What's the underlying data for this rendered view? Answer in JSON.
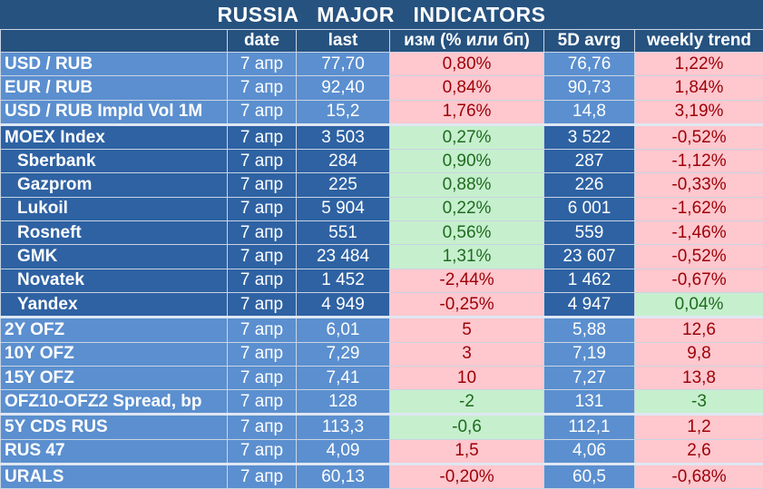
{
  "title": "RUSSIA   MAJOR   INDICATORS",
  "headers": [
    "",
    "date",
    "last",
    "изм (% или бп)",
    "5D avrg",
    "weekly trend"
  ],
  "rows": [
    {
      "name": "USD / RUB",
      "date": "7 апр",
      "last": "77,70",
      "chg": "0,80%",
      "avg": "76,76",
      "trend": "1,22%",
      "chg_s": "neg",
      "trend_s": "neg",
      "band": "blue-l",
      "sub": false,
      "sep": false
    },
    {
      "name": "EUR / RUB",
      "date": "7 апр",
      "last": "92,40",
      "chg": "0,84%",
      "avg": "90,73",
      "trend": "1,84%",
      "chg_s": "neg",
      "trend_s": "neg",
      "band": "blue-l",
      "sub": false,
      "sep": false
    },
    {
      "name": "USD / RUB Impld Vol 1M",
      "date": "7 апр",
      "last": "15,2",
      "chg": "1,76%",
      "avg": "14,8",
      "trend": "3,19%",
      "chg_s": "neg",
      "trend_s": "neg",
      "band": "blue-l",
      "sub": false,
      "sep": false
    },
    {
      "name": "MOEX Index",
      "date": "7 апр",
      "last": "3 503",
      "chg": "0,27%",
      "avg": "3 522",
      "trend": "-0,52%",
      "chg_s": "pos",
      "trend_s": "neg",
      "band": "blue-d",
      "sub": false,
      "sep": true
    },
    {
      "name": "Sberbank",
      "date": "7 апр",
      "last": "284",
      "chg": "0,90%",
      "avg": "287",
      "trend": "-1,12%",
      "chg_s": "pos",
      "trend_s": "neg",
      "band": "blue-d",
      "sub": true,
      "sep": false
    },
    {
      "name": "Gazprom",
      "date": "7 апр",
      "last": "225",
      "chg": "0,88%",
      "avg": "226",
      "trend": "-0,33%",
      "chg_s": "pos",
      "trend_s": "neg",
      "band": "blue-d",
      "sub": true,
      "sep": false
    },
    {
      "name": "Lukoil",
      "date": "7 апр",
      "last": "5 904",
      "chg": "0,22%",
      "avg": "6 001",
      "trend": "-1,62%",
      "chg_s": "pos",
      "trend_s": "neg",
      "band": "blue-d",
      "sub": true,
      "sep": false
    },
    {
      "name": "Rosneft",
      "date": "7 апр",
      "last": "551",
      "chg": "0,56%",
      "avg": "559",
      "trend": "-1,46%",
      "chg_s": "pos",
      "trend_s": "neg",
      "band": "blue-d",
      "sub": true,
      "sep": false
    },
    {
      "name": "GMK",
      "date": "7 апр",
      "last": "23 484",
      "chg": "1,31%",
      "avg": "23 607",
      "trend": "-0,52%",
      "chg_s": "pos",
      "trend_s": "neg",
      "band": "blue-d",
      "sub": true,
      "sep": false
    },
    {
      "name": "Novatek",
      "date": "7 апр",
      "last": "1 452",
      "chg": "-2,44%",
      "avg": "1 462",
      "trend": "-0,67%",
      "chg_s": "neg",
      "trend_s": "neg",
      "band": "blue-d",
      "sub": true,
      "sep": false
    },
    {
      "name": "Yandex",
      "date": "7 апр",
      "last": "4 949",
      "chg": "-0,25%",
      "avg": "4 947",
      "trend": "0,04%",
      "chg_s": "neg",
      "trend_s": "pos",
      "band": "blue-d",
      "sub": true,
      "sep": false
    },
    {
      "name": "2Y OFZ",
      "date": "7 апр",
      "last": "6,01",
      "chg": "5",
      "avg": "5,88",
      "trend": "12,6",
      "chg_s": "neg",
      "trend_s": "neg",
      "band": "blue-l",
      "sub": false,
      "sep": true
    },
    {
      "name": "10Y OFZ",
      "date": "7 апр",
      "last": "7,29",
      "chg": "3",
      "avg": "7,19",
      "trend": "9,8",
      "chg_s": "neg",
      "trend_s": "neg",
      "band": "blue-l",
      "sub": false,
      "sep": false
    },
    {
      "name": "15Y OFZ",
      "date": "7 апр",
      "last": "7,41",
      "chg": "10",
      "avg": "7,27",
      "trend": "13,8",
      "chg_s": "neg",
      "trend_s": "neg",
      "band": "blue-l",
      "sub": false,
      "sep": false
    },
    {
      "name": "OFZ10-OFZ2 Spread, bp",
      "date": "7 апр",
      "last": "128",
      "chg": "-2",
      "avg": "131",
      "trend": "-3",
      "chg_s": "pos",
      "trend_s": "pos",
      "band": "blue-l",
      "sub": false,
      "sep": false
    },
    {
      "name": "5Y CDS RUS",
      "date": "7 апр",
      "last": "113,3",
      "chg": "-0,6",
      "avg": "112,1",
      "trend": "1,2",
      "chg_s": "pos",
      "trend_s": "neg",
      "band": "blue-l",
      "sub": false,
      "sep": true
    },
    {
      "name": "RUS 47",
      "date": "7 апр",
      "last": "4,09",
      "chg": "1,5",
      "avg": "4,06",
      "trend": "2,6",
      "chg_s": "neg",
      "trend_s": "neg",
      "band": "blue-l",
      "sub": false,
      "sep": false
    },
    {
      "name": "URALS",
      "date": "7 апр",
      "last": "60,13",
      "chg": "-0,20%",
      "avg": "60,5",
      "trend": "-0,68%",
      "chg_s": "neg",
      "trend_s": "neg",
      "band": "blue-l",
      "sub": false,
      "sep": true
    }
  ]
}
